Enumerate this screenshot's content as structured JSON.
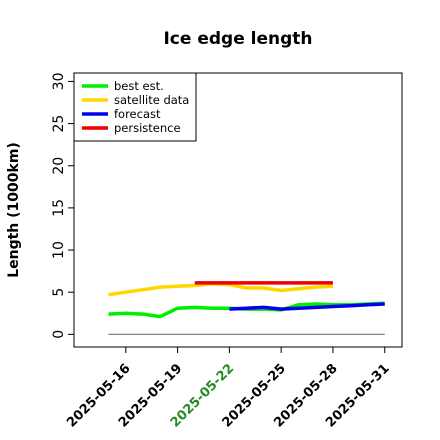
{
  "chart_data": {
    "type": "line",
    "title": "Ice edge length",
    "xlabel": "",
    "ylabel": "Length (1000km)",
    "ylim": [
      -1.5,
      31
    ],
    "yticks": [
      0,
      5,
      10,
      15,
      20,
      25,
      30
    ],
    "xlim": [
      "2025-05-13",
      "2025-06-01"
    ],
    "xticks": [
      {
        "date": "2025-05-16",
        "label": "2025-05-16",
        "color": "#000000"
      },
      {
        "date": "2025-05-19",
        "label": "2025-05-19",
        "color": "#000000"
      },
      {
        "date": "2025-05-22",
        "label": "2025-05-22",
        "color": "#228B22"
      },
      {
        "date": "2025-05-25",
        "label": "2025-05-25",
        "color": "#000000"
      },
      {
        "date": "2025-05-28",
        "label": "2025-05-28",
        "color": "#000000"
      },
      {
        "date": "2025-05-31",
        "label": "2025-05-31",
        "color": "#000000"
      }
    ],
    "legend_position": "top-left",
    "grid": false,
    "reference_line": {
      "value": 0,
      "x_from": "2025-05-15",
      "x_to": "2025-05-31",
      "color": "#808080"
    },
    "series": [
      {
        "name": "best est.",
        "color": "#00EE00",
        "points": [
          [
            "2025-05-15",
            2.4
          ],
          [
            "2025-05-16",
            2.5
          ],
          [
            "2025-05-17",
            2.4
          ],
          [
            "2025-05-18",
            2.1
          ],
          [
            "2025-05-19",
            3.1
          ],
          [
            "2025-05-20",
            3.2
          ],
          [
            "2025-05-21",
            3.1
          ],
          [
            "2025-05-22",
            3.1
          ],
          [
            "2025-05-23",
            3.0
          ],
          [
            "2025-05-24",
            3.0
          ],
          [
            "2025-05-25",
            2.9
          ],
          [
            "2025-05-26",
            3.5
          ],
          [
            "2025-05-27",
            3.6
          ],
          [
            "2025-05-28",
            3.5
          ],
          [
            "2025-05-29",
            3.5
          ],
          [
            "2025-05-30",
            3.6
          ],
          [
            "2025-05-31",
            3.7
          ]
        ]
      },
      {
        "name": "satellite data",
        "color": "#FFD700",
        "points": [
          [
            "2025-05-15",
            4.7
          ],
          [
            "2025-05-16",
            5.0
          ],
          [
            "2025-05-17",
            5.3
          ],
          [
            "2025-05-18",
            5.6
          ],
          [
            "2025-05-19",
            5.7
          ],
          [
            "2025-05-20",
            5.8
          ],
          [
            "2025-05-21",
            6.0
          ],
          [
            "2025-05-22",
            5.9
          ],
          [
            "2025-05-23",
            5.5
          ],
          [
            "2025-05-24",
            5.5
          ],
          [
            "2025-05-25",
            5.2
          ],
          [
            "2025-05-26",
            5.4
          ],
          [
            "2025-05-27",
            5.6
          ],
          [
            "2025-05-28",
            5.7
          ]
        ]
      },
      {
        "name": "forecast",
        "color": "#0000EE",
        "points": [
          [
            "2025-05-22",
            3.0
          ],
          [
            "2025-05-23",
            3.1
          ],
          [
            "2025-05-24",
            3.2
          ],
          [
            "2025-05-25",
            3.0
          ],
          [
            "2025-05-26",
            3.1
          ],
          [
            "2025-05-27",
            3.2
          ],
          [
            "2025-05-28",
            3.3
          ],
          [
            "2025-05-29",
            3.4
          ],
          [
            "2025-05-30",
            3.5
          ],
          [
            "2025-05-31",
            3.6
          ]
        ]
      },
      {
        "name": "persistence",
        "color": "#EE0000",
        "points": [
          [
            "2025-05-20",
            6.1
          ],
          [
            "2025-05-28",
            6.1
          ]
        ]
      }
    ]
  }
}
